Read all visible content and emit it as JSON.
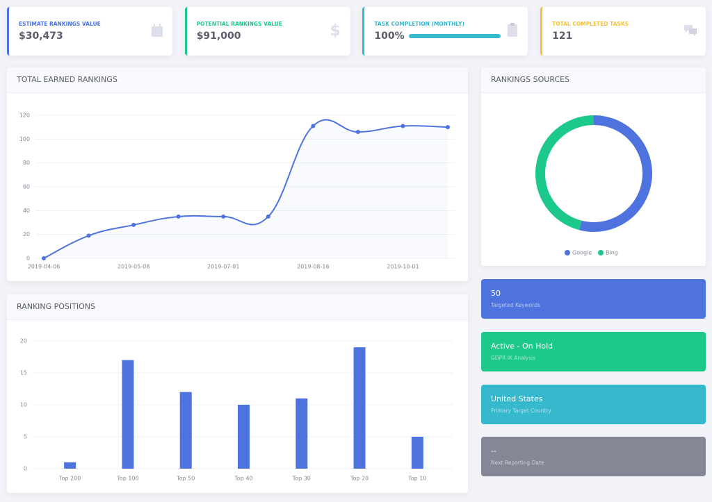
{
  "cards": [
    {
      "title": "Estimate Rankings Value",
      "value": "$30,473",
      "color": "#4e73df"
    },
    {
      "title": "Potential Rankings Value",
      "value": "$91,000",
      "color": "#1cc88a"
    },
    {
      "title": "Task Completion (Monthly)",
      "value": "100%",
      "progress": 100,
      "color": "#36b9cc"
    },
    {
      "title": "Total Completed Tasks",
      "value": 121,
      "color": "#f6c23e"
    }
  ],
  "chart_data": [
    {
      "type": "line",
      "title": "Total Earned Rankings",
      "categories": [
        "2019-04-06",
        null,
        "2019-05-08",
        null,
        "2019-07-01",
        null,
        "2019-08-16",
        null,
        "2019-10-01",
        null
      ],
      "values": [
        0,
        19,
        28,
        35,
        35,
        35,
        111,
        106,
        111,
        110
      ],
      "color": "#4e73df",
      "ylim": [
        0,
        120
      ],
      "yticks": [
        0,
        20,
        40,
        60,
        80,
        100,
        120
      ],
      "grid": true
    },
    {
      "type": "bar",
      "title": "Ranking Positions",
      "categories": [
        "Top 200",
        "Top 100",
        "Top 50",
        "Top 40",
        "Top 30",
        "Top 20",
        "Top 10"
      ],
      "values": [
        1,
        17,
        12,
        10,
        11,
        19,
        5
      ],
      "color": "#4e73df",
      "ylim": [
        0,
        20
      ],
      "yticks": [
        0,
        5,
        10,
        15,
        20
      ],
      "grid": true
    },
    {
      "type": "pie",
      "title": "Rankings Sources",
      "donut": true,
      "categories": [
        "Google",
        "Bing"
      ],
      "values": [
        54,
        46
      ],
      "colors": [
        "#4e73df",
        "#1cc88a"
      ],
      "legend": "bottom"
    }
  ],
  "info_boxes": [
    {
      "value": 50,
      "label": "Targeted Keywords",
      "color": "#4e73df"
    },
    {
      "value": "Active - On Hold",
      "label": "GDPR IK Analysis",
      "color": "#1cc88a"
    },
    {
      "value": "United States",
      "label": "Primary Target Country",
      "color": "#36b9cc"
    },
    {
      "value": "--",
      "label": "Next Reporting Date",
      "color": "#858796"
    }
  ]
}
